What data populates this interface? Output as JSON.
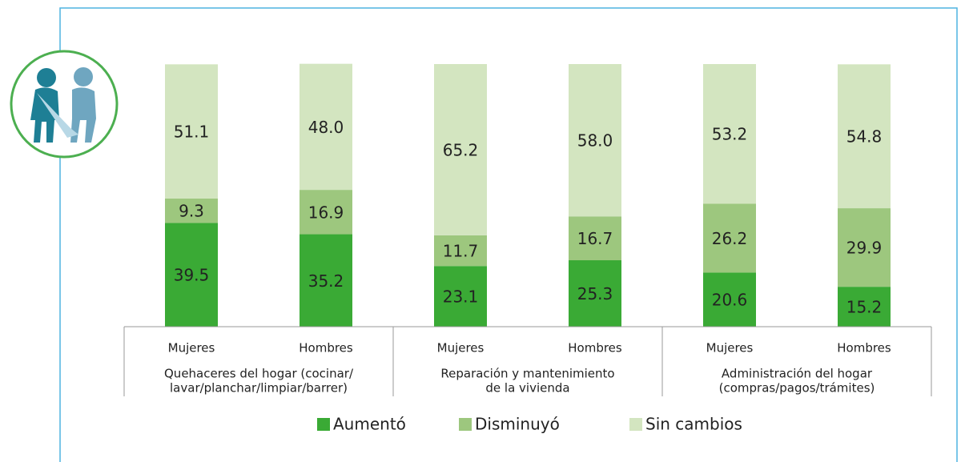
{
  "chart_data": {
    "type": "stacked_bar",
    "categories": [
      "Mujeres",
      "Hombres",
      "Mujeres",
      "Hombres",
      "Mujeres",
      "Hombres"
    ],
    "groups": [
      [
        "Quehaceres del hogar (cocinar/",
        "lavar/planchar/limpiar/barrer)"
      ],
      [
        "Reparación y mantenimiento",
        "de la vivienda"
      ],
      [
        "Administración del hogar",
        "(compras/pagos/trámites)"
      ]
    ],
    "ylim": [
      0,
      100
    ],
    "series": [
      {
        "name": "Aumentó",
        "color": "#3aaa35",
        "values": [
          39.5,
          35.2,
          23.1,
          25.3,
          20.6,
          15.2
        ],
        "value_labels": [
          "39.5",
          "35.2",
          "23.1",
          "25.3",
          "20.6",
          "15.2"
        ]
      },
      {
        "name": "Disminuyó",
        "color": "#9dc77e",
        "values": [
          9.3,
          16.9,
          11.7,
          16.7,
          26.2,
          29.9
        ],
        "value_labels": [
          "9.3",
          "16.9",
          "11.7",
          "16.7",
          "26.2",
          "29.9"
        ]
      },
      {
        "name": "Sin cambios",
        "color": "#d3e5c0",
        "values": [
          51.1,
          48.0,
          65.2,
          58.0,
          53.2,
          54.8
        ],
        "value_labels": [
          "51.1",
          "48.0",
          "65.2",
          "58.0",
          "53.2",
          "54.8"
        ]
      }
    ],
    "legend": "bottom"
  }
}
